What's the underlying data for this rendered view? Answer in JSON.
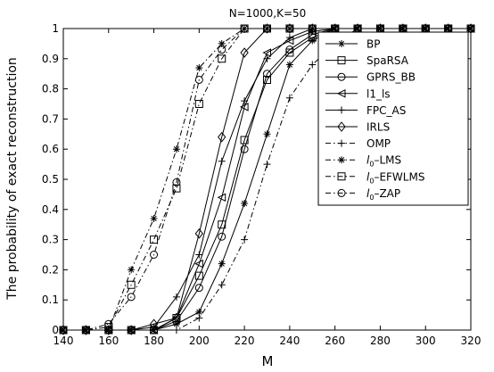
{
  "chart_data": {
    "type": "line",
    "title": "N=1000,K=50",
    "xlabel": "M",
    "ylabel": "The probability of exact reconstruction",
    "xlim": [
      140,
      320
    ],
    "ylim": [
      0,
      1
    ],
    "xticks": [
      140,
      160,
      180,
      200,
      220,
      240,
      260,
      280,
      300,
      320
    ],
    "yticks": [
      0,
      0.1,
      0.2,
      0.3,
      0.4,
      0.5,
      0.6,
      0.7,
      0.8,
      0.9,
      1
    ],
    "grid": false,
    "legend_position": "top-right",
    "x": [
      140,
      150,
      160,
      170,
      180,
      190,
      200,
      210,
      220,
      230,
      240,
      250,
      260,
      270,
      280,
      290,
      300,
      310,
      320
    ],
    "series": [
      {
        "name": "BP",
        "marker": "asterisk",
        "dash": "solid",
        "color": "#000000",
        "values": [
          0,
          0,
          0,
          0,
          0,
          0.02,
          0.06,
          0.22,
          0.42,
          0.65,
          0.88,
          0.96,
          1,
          1,
          1,
          1,
          1,
          1,
          1
        ]
      },
      {
        "name": "SpaRSA",
        "marker": "square",
        "dash": "solid",
        "color": "#000000",
        "values": [
          0,
          0,
          0,
          0,
          0,
          0.04,
          0.18,
          0.35,
          0.63,
          0.83,
          0.92,
          0.97,
          1,
          1,
          1,
          1,
          1,
          1,
          1
        ]
      },
      {
        "name": "GPRS_BB",
        "marker": "circle",
        "dash": "solid",
        "color": "#000000",
        "values": [
          0,
          0,
          0,
          0,
          0,
          0.03,
          0.14,
          0.31,
          0.6,
          0.85,
          0.93,
          0.98,
          1,
          1,
          1,
          1,
          1,
          1,
          1
        ]
      },
      {
        "name": "l1_ls",
        "marker": "triangle-left",
        "dash": "solid",
        "color": "#000000",
        "values": [
          0,
          0,
          0,
          0,
          0,
          0.04,
          0.22,
          0.44,
          0.74,
          0.92,
          0.96,
          0.99,
          1,
          1,
          1,
          1,
          1,
          1,
          1
        ]
      },
      {
        "name": "FPC_AS",
        "marker": "plus",
        "dash": "solid",
        "color": "#000000",
        "values": [
          0,
          0,
          0,
          0,
          0.01,
          0.11,
          0.25,
          0.56,
          0.76,
          0.9,
          0.97,
          1,
          1,
          1,
          1,
          1,
          1,
          1,
          1
        ]
      },
      {
        "name": "IRLS",
        "marker": "diamond",
        "dash": "solid",
        "color": "#000000",
        "values": [
          0,
          0,
          0,
          0,
          0.02,
          0.04,
          0.32,
          0.64,
          0.92,
          1,
          1,
          1,
          1,
          1,
          1,
          1,
          1,
          1,
          1
        ]
      },
      {
        "name": "OMP",
        "marker": "plus",
        "dash": "dashdot",
        "color": "#000000",
        "values": [
          0,
          0,
          0,
          0,
          0,
          0,
          0.04,
          0.15,
          0.3,
          0.55,
          0.77,
          0.88,
          0.95,
          1,
          1,
          1,
          1,
          1,
          1
        ]
      },
      {
        "name": "LMS",
        "prefix": "l",
        "sub": "0",
        "suffix": "–LMS",
        "marker": "asterisk",
        "dash": "dashdot",
        "color": "#000000",
        "values": [
          0,
          0,
          0,
          0.2,
          0.37,
          0.6,
          0.87,
          0.95,
          1,
          1,
          1,
          1,
          1,
          1,
          1,
          1,
          1,
          1,
          1
        ]
      },
      {
        "name": "EFWLMS",
        "prefix": "l",
        "sub": "0",
        "suffix": "–EFWLMS",
        "marker": "square",
        "dash": "dashdot",
        "color": "#000000",
        "values": [
          0,
          0,
          0.01,
          0.15,
          0.3,
          0.47,
          0.75,
          0.9,
          1,
          1,
          1,
          1,
          1,
          1,
          1,
          1,
          1,
          1,
          1
        ]
      },
      {
        "name": "ZAP",
        "prefix": "l",
        "sub": "0",
        "suffix": "–ZAP",
        "marker": "circle",
        "dash": "dashdot",
        "color": "#000000",
        "values": [
          0,
          0,
          0.02,
          0.11,
          0.25,
          0.49,
          0.83,
          0.93,
          1,
          1,
          1,
          1,
          1,
          1,
          1,
          1,
          1,
          1,
          1
        ]
      }
    ]
  }
}
